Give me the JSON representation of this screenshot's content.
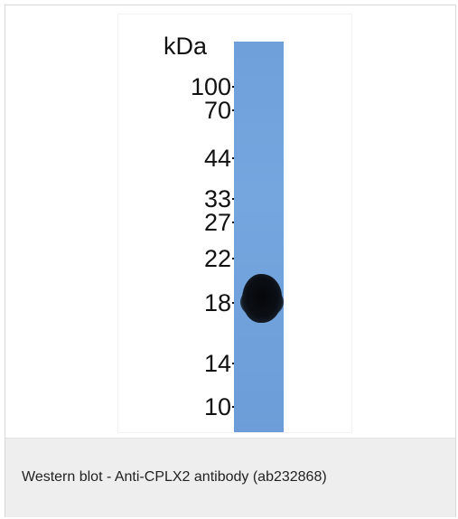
{
  "figure": {
    "unit_label": "kDa",
    "markers": [
      {
        "label": "100",
        "kda": 100
      },
      {
        "label": "70",
        "kda": 70
      },
      {
        "label": "44",
        "kda": 44
      },
      {
        "label": "33",
        "kda": 33
      },
      {
        "label": "27",
        "kda": 27
      },
      {
        "label": "22",
        "kda": 22
      },
      {
        "label": "18",
        "kda": 18
      },
      {
        "label": "14",
        "kda": 14
      },
      {
        "label": "10",
        "kda": 10
      }
    ],
    "lane_color": "#72a3dc",
    "band_color": "#0a0d12"
  },
  "caption": "Western blot - Anti-CPLX2 antibody (ab232868)"
}
